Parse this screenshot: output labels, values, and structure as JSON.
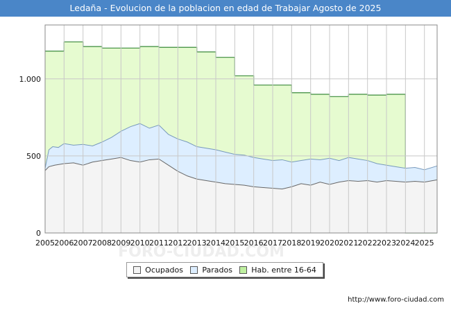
{
  "header": {
    "title": "Ledaña - Evolucion de la poblacion en edad de Trabajar Agosto de 2025"
  },
  "footer": {
    "url": "http://www.foro-ciudad.com"
  },
  "watermark": "FORO-CIUDAD.COM",
  "colors": {
    "title_bg": "#4a86c8",
    "hab_fill": "#e6fbd0",
    "hab_line": "#3a8a3a",
    "parados_fill": "#ddeeff",
    "parados_line": "#7799bb",
    "ocupados_fill": "#f4f4f4",
    "ocupados_line": "#666666"
  },
  "chart_data": {
    "type": "area",
    "title": "Ledaña - Evolucion de la poblacion en edad de Trabajar Agosto de 2025",
    "xlabel": "",
    "ylabel": "",
    "xlim": [
      2005,
      2025.67
    ],
    "ylim": [
      0,
      1350
    ],
    "yticks": [
      0,
      500,
      1000
    ],
    "ytick_labels": [
      "0",
      "500",
      "1.000"
    ],
    "xticks": [
      "2005",
      "2006",
      "2007",
      "2008",
      "2009",
      "2010",
      "2011",
      "2012",
      "2013",
      "2014",
      "2015",
      "2016",
      "2017",
      "2018",
      "2019",
      "2020",
      "2021",
      "2022",
      "2023",
      "2024",
      "2025"
    ],
    "grid": true,
    "legend": [
      "Ocupados",
      "Parados",
      "Hab. entre 16-64"
    ],
    "legend_position": "bottom",
    "series": [
      {
        "name": "Hab. entre 16-64",
        "type": "step",
        "x": [
          2005,
          2006,
          2007,
          2008,
          2009,
          2010,
          2011,
          2012,
          2013,
          2014,
          2015,
          2016,
          2017,
          2018,
          2019,
          2020,
          2021,
          2022,
          2023,
          2024,
          2025
        ],
        "values": [
          1180,
          1240,
          1210,
          1200,
          1200,
          1210,
          1205,
          1205,
          1175,
          1140,
          1020,
          960,
          960,
          910,
          900,
          885,
          900,
          895,
          900,
          0,
          0
        ]
      },
      {
        "name": "Parados",
        "type": "line",
        "x": [
          2005,
          2005.2,
          2005.4,
          2005.7,
          2006,
          2006.5,
          2007,
          2007.5,
          2008,
          2008.5,
          2009,
          2009.5,
          2010,
          2010.5,
          2011,
          2011.5,
          2012,
          2012.5,
          2013,
          2013.5,
          2014,
          2014.5,
          2015,
          2015.5,
          2016,
          2016.5,
          2017,
          2017.5,
          2018,
          2018.5,
          2019,
          2019.5,
          2020,
          2020.5,
          2021,
          2021.5,
          2022,
          2022.5,
          2023,
          2023.5,
          2024,
          2024.5,
          2025,
          2025.67
        ],
        "values": [
          420,
          540,
          560,
          555,
          580,
          570,
          575,
          565,
          590,
          620,
          660,
          690,
          710,
          680,
          700,
          640,
          610,
          590,
          560,
          550,
          540,
          525,
          510,
          505,
          490,
          480,
          470,
          475,
          460,
          470,
          480,
          475,
          485,
          470,
          490,
          480,
          470,
          450,
          440,
          430,
          420,
          425,
          410,
          435
        ]
      },
      {
        "name": "Ocupados",
        "type": "line",
        "x": [
          2005,
          2005.2,
          2005.5,
          2006,
          2006.5,
          2007,
          2007.5,
          2008,
          2008.5,
          2009,
          2009.5,
          2010,
          2010.5,
          2011,
          2011.5,
          2012,
          2012.5,
          2013,
          2013.5,
          2014,
          2014.5,
          2015,
          2015.5,
          2016,
          2016.5,
          2017,
          2017.5,
          2018,
          2018.5,
          2019,
          2019.5,
          2020,
          2020.5,
          2021,
          2021.5,
          2022,
          2022.5,
          2023,
          2023.5,
          2024,
          2024.5,
          2025,
          2025.67
        ],
        "values": [
          405,
          430,
          440,
          450,
          455,
          440,
          460,
          470,
          480,
          490,
          470,
          460,
          475,
          480,
          440,
          400,
          370,
          350,
          340,
          330,
          320,
          315,
          310,
          300,
          295,
          290,
          285,
          300,
          320,
          310,
          330,
          315,
          330,
          340,
          335,
          340,
          330,
          340,
          335,
          330,
          335,
          330,
          345
        ]
      }
    ]
  }
}
